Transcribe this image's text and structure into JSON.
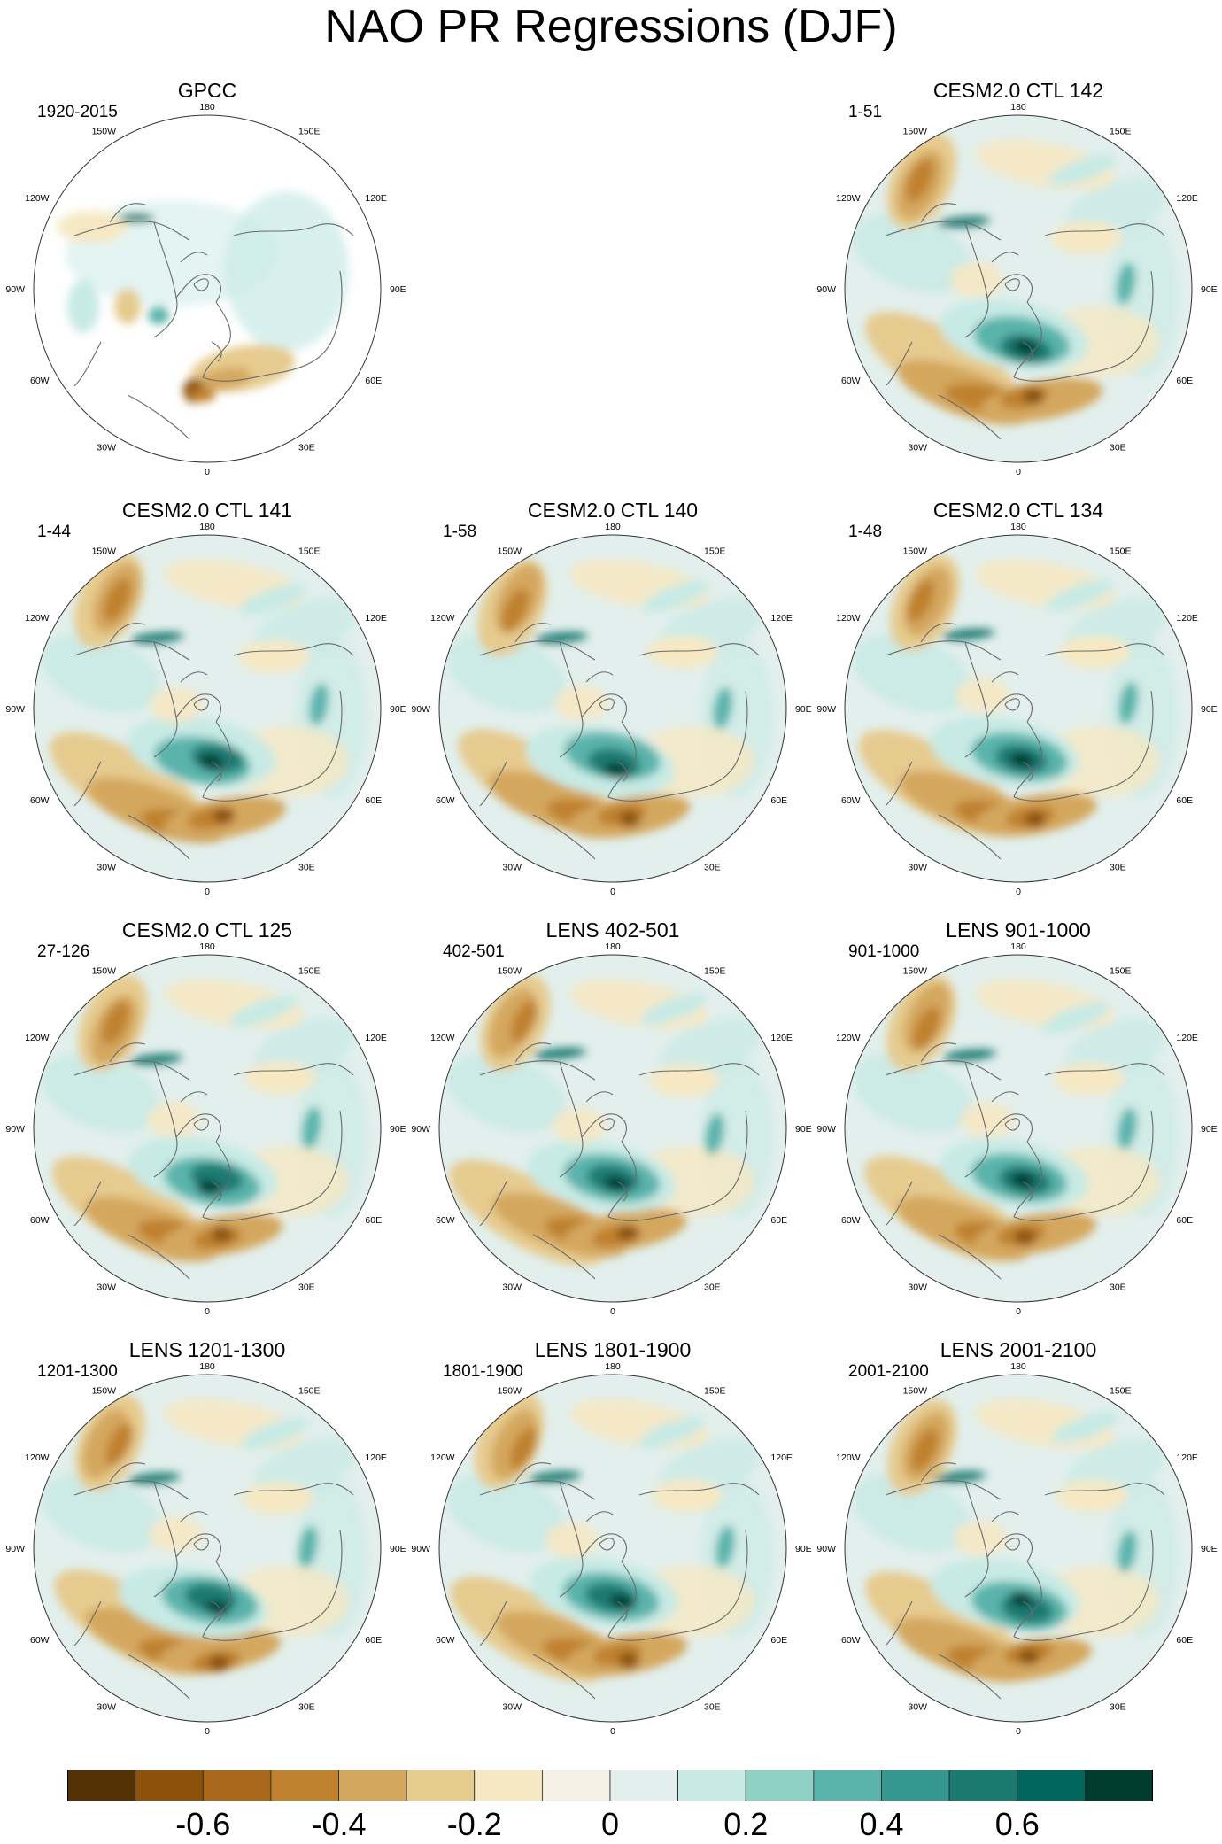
{
  "figure": {
    "title": "NAO PR Regressions (DJF)"
  },
  "panels": [
    {
      "title": "GPCC",
      "period": "1920-2015",
      "variant": "obs"
    },
    {
      "title": "CESM2.0 CTL 142",
      "period": "1-51",
      "variant": "model"
    },
    {
      "title": "CESM2.0 CTL 141",
      "period": "1-44",
      "variant": "model"
    },
    {
      "title": "CESM2.0 CTL 140",
      "period": "1-58",
      "variant": "model"
    },
    {
      "title": "CESM2.0 CTL 134",
      "period": "1-48",
      "variant": "model"
    },
    {
      "title": "CESM2.0 CTL 125",
      "period": "27-126",
      "variant": "model"
    },
    {
      "title": "LENS 402-501",
      "period": "402-501",
      "variant": "model"
    },
    {
      "title": "LENS 901-1000",
      "period": "901-1000",
      "variant": "model"
    },
    {
      "title": "LENS 1201-1300",
      "period": "1201-1300",
      "variant": "model"
    },
    {
      "title": "LENS 1801-1900",
      "period": "1801-1900",
      "variant": "model"
    },
    {
      "title": "LENS 2001-2100",
      "period": "2001-2100",
      "variant": "model"
    }
  ],
  "longitude_labels": [
    "180",
    "150E",
    "120E",
    "90E",
    "60E",
    "30E",
    "0",
    "30W",
    "60W",
    "90W",
    "120W",
    "150W"
  ],
  "chart_data": {
    "type": "heatmap",
    "projection": "polar-stereographic-north",
    "variable": "precipitation regression on NAO index",
    "season": "DJF",
    "colorbar": {
      "levels": [
        -0.7,
        -0.6,
        -0.5,
        -0.4,
        -0.3,
        -0.2,
        -0.1,
        0,
        0.1,
        0.2,
        0.3,
        0.4,
        0.5,
        0.6,
        0.7
      ],
      "tick_values": [
        -0.6,
        -0.4,
        -0.2,
        0,
        0.2,
        0.4,
        0.6
      ],
      "tick_labels": [
        "-0.6",
        "-0.4",
        "-0.2",
        "0",
        "0.2",
        "0.4",
        "0.6"
      ],
      "colors": [
        "#543005",
        "#8c510a",
        "#a8671a",
        "#bf812d",
        "#d4a75f",
        "#e6cb8f",
        "#f6e8c3",
        "#f5f0e3",
        "#e2efec",
        "#c7eae5",
        "#8fd1c5",
        "#5ab4ac",
        "#35978f",
        "#1a7a72",
        "#01665e",
        "#003c30"
      ]
    },
    "features": [
      {
        "region": "Northern Europe",
        "sign": "positive",
        "approx_value": 0.6
      },
      {
        "region": "Mediterranean / Southern Europe",
        "sign": "negative",
        "approx_value": -0.6
      },
      {
        "region": "Western North America / Alaska",
        "sign": "negative",
        "approx_value": -0.5
      },
      {
        "region": "Subtropical North Atlantic",
        "sign": "negative",
        "approx_value": -0.4
      },
      {
        "region": "Labrador Sea",
        "sign": "positive",
        "approx_value": 0.3
      }
    ]
  }
}
